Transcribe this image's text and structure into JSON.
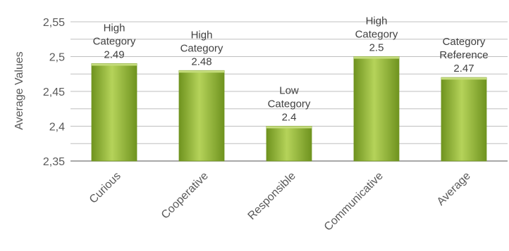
{
  "chart_data": {
    "type": "bar",
    "title": "",
    "xlabel": "",
    "ylabel": "Average Values",
    "ylim": [
      2.35,
      2.55
    ],
    "yticks": [
      "2,35",
      "2,4",
      "2,45",
      "2,5",
      "2,55"
    ],
    "grid": true,
    "categories": [
      "Curious",
      "Cooperative",
      "Responsible",
      "Communicative",
      "Average"
    ],
    "values": [
      2.49,
      2.48,
      2.4,
      2.5,
      2.47
    ],
    "data_labels": [
      [
        "High",
        "Category",
        "2.49"
      ],
      [
        "High",
        "Category",
        "2.48"
      ],
      [
        "Low",
        "Category",
        "2.4"
      ],
      [
        "High",
        "Category",
        "2.5"
      ],
      [
        "Category",
        "Reference",
        "2.47"
      ]
    ],
    "colors": {
      "bar_light": "#c6dd7e",
      "bar_mid": "#9cc23f",
      "bar_dark": "#6f931f",
      "gridline": "#bfbfbf",
      "axis": "#8c8c8c"
    }
  }
}
